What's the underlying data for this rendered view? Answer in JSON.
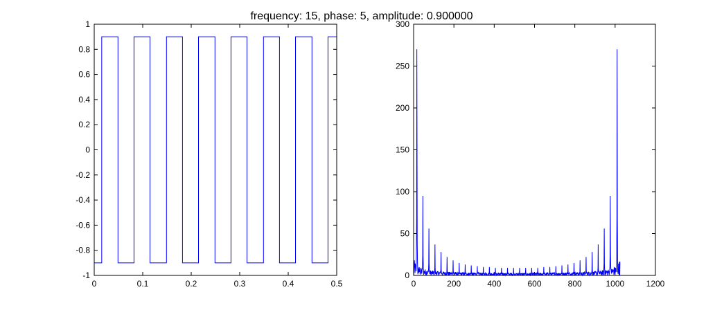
{
  "figure": {
    "title": "frequency: 15, phase: 5, amplitude: 0.900000"
  },
  "chart_data": [
    {
      "type": "line",
      "title": "",
      "xlabel": "",
      "ylabel": "",
      "xlim": [
        0,
        0.5
      ],
      "ylim": [
        -1,
        1
      ],
      "xticks": [
        0,
        0.1,
        0.2,
        0.3,
        0.4,
        0.5
      ],
      "yticks": [
        -1,
        -0.8,
        -0.6,
        -0.4,
        -0.2,
        0,
        0.2,
        0.4,
        0.6,
        0.8,
        1
      ],
      "xtick_labels": [
        "0",
        "0.1",
        "0.2",
        "0.3",
        "0.4",
        "0.5"
      ],
      "ytick_labels": [
        "-1",
        "-0.8",
        "-0.6",
        "-0.4",
        "-0.2",
        "0",
        "0.2",
        "0.4",
        "0.6",
        "0.8",
        "1"
      ],
      "grid": false,
      "series": [
        {
          "color": "#0000ff",
          "style": "step",
          "x": [
            0,
            0.0155,
            0.0155,
            0.049,
            0.049,
            0.082,
            0.082,
            0.115,
            0.115,
            0.149,
            0.149,
            0.182,
            0.182,
            0.215,
            0.215,
            0.249,
            0.249,
            0.282,
            0.282,
            0.315,
            0.315,
            0.349,
            0.349,
            0.382,
            0.382,
            0.415,
            0.415,
            0.449,
            0.449,
            0.482,
            0.482,
            0.5
          ],
          "y": [
            -0.9,
            -0.9,
            0.9,
            0.9,
            -0.9,
            -0.9,
            0.9,
            0.9,
            -0.9,
            -0.9,
            0.9,
            0.9,
            -0.9,
            -0.9,
            0.9,
            0.9,
            -0.9,
            -0.9,
            0.9,
            0.9,
            -0.9,
            -0.9,
            0.9,
            0.9,
            -0.9,
            -0.9,
            0.9,
            0.9,
            -0.9,
            -0.9,
            0.9,
            0.9
          ]
        }
      ]
    },
    {
      "type": "line",
      "title": "",
      "xlabel": "",
      "ylabel": "",
      "xlim": [
        0,
        1200
      ],
      "ylim": [
        0,
        300
      ],
      "xticks": [
        0,
        200,
        400,
        600,
        800,
        1000,
        1200
      ],
      "yticks": [
        0,
        50,
        100,
        150,
        200,
        250,
        300
      ],
      "xtick_labels": [
        "0",
        "200",
        "400",
        "600",
        "800",
        "1000",
        "1200"
      ],
      "ytick_labels": [
        "0",
        "50",
        "100",
        "150",
        "200",
        "250",
        "300"
      ],
      "grid": false,
      "n_points": 1024,
      "series": [
        {
          "color": "#0000ff",
          "description_values": "magnitude spectrum",
          "peaks": [
            {
              "x": 15,
              "y": 270
            },
            {
              "x": 16,
              "y": 158
            },
            {
              "x": 45,
              "y": 95
            },
            {
              "x": 75,
              "y": 56
            },
            {
              "x": 105,
              "y": 37
            },
            {
              "x": 135,
              "y": 28
            },
            {
              "x": 165,
              "y": 22
            },
            {
              "x": 195,
              "y": 18
            },
            {
              "x": 225,
              "y": 15
            },
            {
              "x": 255,
              "y": 13
            },
            {
              "x": 285,
              "y": 12
            },
            {
              "x": 315,
              "y": 11
            },
            {
              "x": 345,
              "y": 10
            },
            {
              "x": 375,
              "y": 10
            },
            {
              "x": 405,
              "y": 9
            },
            {
              "x": 435,
              "y": 9
            },
            {
              "x": 465,
              "y": 9
            },
            {
              "x": 495,
              "y": 9
            },
            {
              "x": 525,
              "y": 9
            },
            {
              "x": 555,
              "y": 9
            },
            {
              "x": 585,
              "y": 9
            },
            {
              "x": 615,
              "y": 9
            },
            {
              "x": 645,
              "y": 10
            },
            {
              "x": 675,
              "y": 10
            },
            {
              "x": 705,
              "y": 11
            },
            {
              "x": 735,
              "y": 12
            },
            {
              "x": 765,
              "y": 13
            },
            {
              "x": 795,
              "y": 15
            },
            {
              "x": 825,
              "y": 18
            },
            {
              "x": 855,
              "y": 22
            },
            {
              "x": 885,
              "y": 28
            },
            {
              "x": 915,
              "y": 37
            },
            {
              "x": 945,
              "y": 56
            },
            {
              "x": 975,
              "y": 95
            },
            {
              "x": 1008,
              "y": 72
            },
            {
              "x": 1009,
              "y": 270
            }
          ]
        }
      ]
    }
  ]
}
